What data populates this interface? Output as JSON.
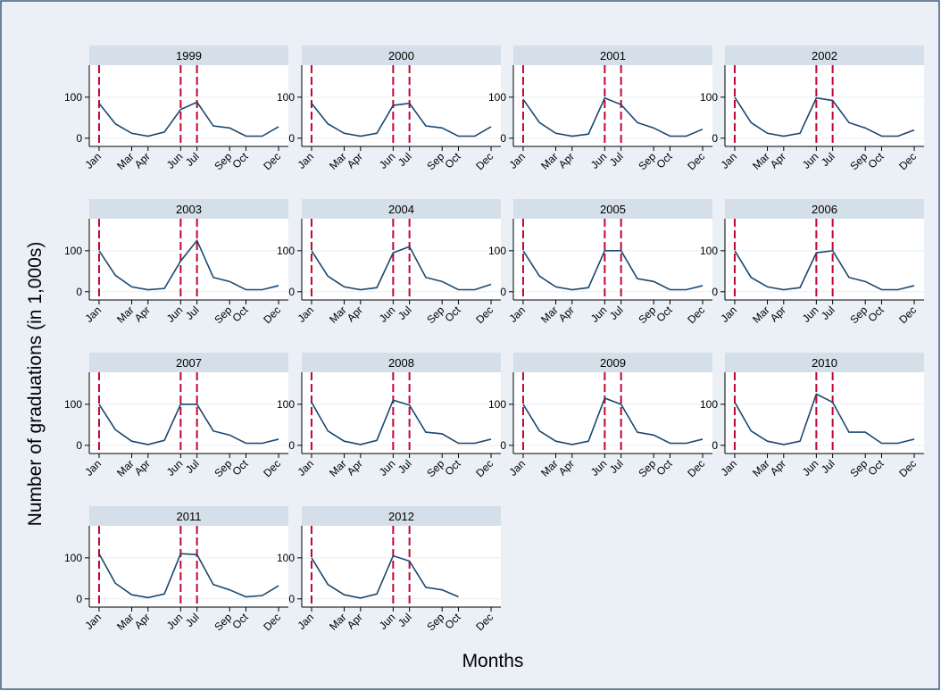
{
  "y_label": "Number of graduations (in 1,000s)",
  "x_label": "Months",
  "chart_data": {
    "type": "line",
    "line_color": "#1a476f",
    "vline_color": "#c10534",
    "x": [
      1,
      2,
      3,
      4,
      5,
      6,
      7,
      8,
      9,
      10,
      11,
      12
    ],
    "xlim": [
      0.4,
      12.6
    ],
    "xticks": [
      {
        "value": 1,
        "label": "Jan"
      },
      {
        "value": 3,
        "label": "Mar"
      },
      {
        "value": 4,
        "label": "Apr"
      },
      {
        "value": 6,
        "label": "Jun"
      },
      {
        "value": 7,
        "label": "Jul"
      },
      {
        "value": 9,
        "label": "Sep"
      },
      {
        "value": 10,
        "label": "Oct"
      },
      {
        "value": 12,
        "label": "Dec"
      }
    ],
    "ylim": [
      -20,
      178
    ],
    "yticks": [
      0,
      100
    ],
    "grid": true,
    "vlines": [
      1,
      6,
      7
    ],
    "panels": [
      {
        "title": "1999",
        "values": [
          85,
          35,
          12,
          5,
          15,
          70,
          88,
          30,
          25,
          5,
          5,
          28
        ]
      },
      {
        "title": "2000",
        "values": [
          85,
          35,
          12,
          5,
          12,
          80,
          85,
          30,
          25,
          5,
          5,
          28
        ]
      },
      {
        "title": "2001",
        "values": [
          95,
          38,
          12,
          5,
          10,
          98,
          82,
          38,
          25,
          5,
          5,
          22
        ]
      },
      {
        "title": "2002",
        "values": [
          100,
          38,
          12,
          5,
          12,
          98,
          92,
          38,
          25,
          5,
          5,
          20
        ]
      },
      {
        "title": "2003",
        "values": [
          100,
          40,
          12,
          5,
          8,
          75,
          125,
          35,
          25,
          5,
          5,
          15
        ]
      },
      {
        "title": "2004",
        "values": [
          100,
          38,
          12,
          5,
          10,
          95,
          110,
          35,
          25,
          5,
          5,
          18
        ]
      },
      {
        "title": "2005",
        "values": [
          100,
          38,
          12,
          5,
          10,
          100,
          100,
          32,
          25,
          5,
          5,
          15
        ]
      },
      {
        "title": "2006",
        "values": [
          100,
          35,
          12,
          5,
          10,
          95,
          100,
          35,
          25,
          5,
          5,
          15
        ]
      },
      {
        "title": "2007",
        "values": [
          100,
          38,
          10,
          2,
          12,
          100,
          100,
          35,
          25,
          5,
          5,
          15
        ]
      },
      {
        "title": "2008",
        "values": [
          105,
          35,
          10,
          2,
          12,
          110,
          98,
          32,
          28,
          5,
          5,
          15
        ]
      },
      {
        "title": "2009",
        "values": [
          100,
          35,
          10,
          2,
          10,
          115,
          100,
          32,
          25,
          5,
          5,
          15
        ]
      },
      {
        "title": "2010",
        "values": [
          105,
          35,
          10,
          2,
          10,
          125,
          105,
          32,
          32,
          5,
          5,
          15
        ]
      },
      {
        "title": "2011",
        "values": [
          110,
          38,
          10,
          3,
          12,
          110,
          108,
          35,
          22,
          5,
          8,
          32
        ]
      },
      {
        "title": "2012",
        "values": [
          100,
          35,
          10,
          2,
          12,
          105,
          92,
          28,
          22,
          5,
          null,
          null
        ]
      }
    ]
  }
}
